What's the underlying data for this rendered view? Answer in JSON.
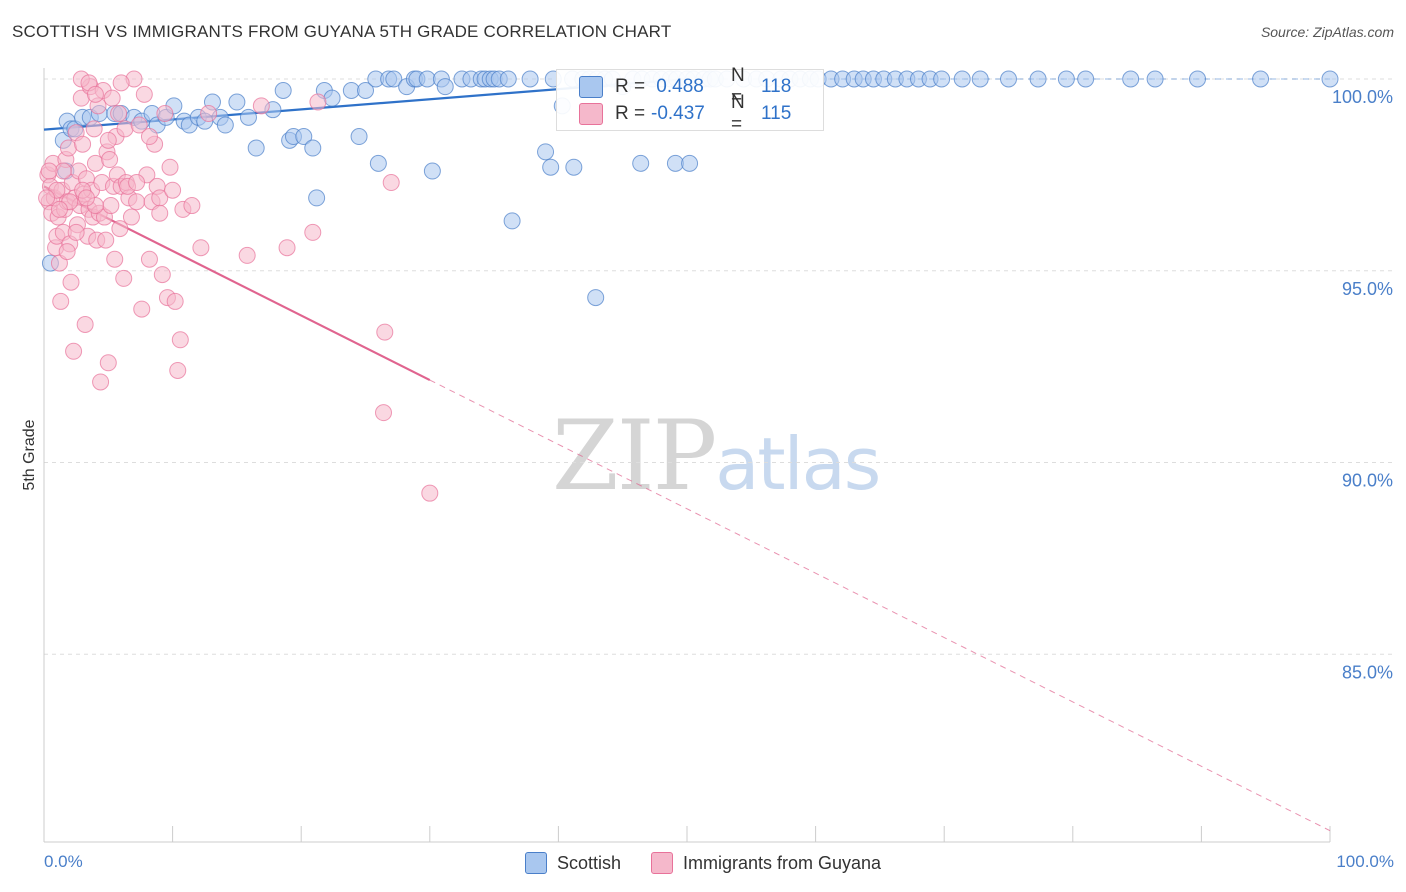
{
  "header": {
    "title": "SCOTTISH VS IMMIGRANTS FROM GUYANA 5TH GRADE CORRELATION CHART",
    "source": "Source: ZipAtlas.com"
  },
  "watermark": {
    "zip": "ZIP",
    "atlas": "atlas"
  },
  "colors": {
    "blue": "#4a7fc9",
    "blue_fill": "#a9c7ef",
    "blue_line": "#2f72c9",
    "pink": "#e8729a",
    "pink_fill": "#f5b8cb",
    "pink_line": "#e0648f",
    "grid": "#dddddd"
  },
  "stats": {
    "scottish": {
      "r_label": "R =",
      "r_value": " 0.488",
      "n_label": "N =",
      "n_value": "118"
    },
    "guyana": {
      "r_label": "R =",
      "r_value": "-0.437",
      "n_label": "N =",
      "n_value": "115"
    }
  },
  "legend": {
    "scottish": "Scottish",
    "guyana": "Immigrants from Guyana"
  },
  "chart_data": {
    "type": "scatter",
    "title": "SCOTTISH VS IMMIGRANTS FROM GUYANA 5TH GRADE CORRELATION CHART",
    "xlabel": "",
    "ylabel": "5th Grade",
    "xlim": [
      0,
      100
    ],
    "ylim": [
      80.5,
      100.5
    ],
    "x_tick_labels": [
      "0.0%",
      "100.0%"
    ],
    "y_ticks": [
      100,
      95,
      90,
      85
    ],
    "y_tick_labels": [
      "100.0%",
      "95.0%",
      "90.0%",
      "85.0%"
    ],
    "grid": true,
    "legend_position": "bottom-center",
    "series": [
      {
        "name": "Scottish",
        "r": 0.488,
        "n": 118,
        "trend": {
          "x": [
            0,
            50
          ],
          "y": [
            98.68,
            100.0
          ],
          "extended_x": [
            50,
            100
          ],
          "extended_y": [
            100.0,
            100.0
          ]
        },
        "points": [
          [
            0.5,
            95.2
          ],
          [
            1.5,
            98.4
          ],
          [
            1.7,
            97.6
          ],
          [
            1.8,
            98.9
          ],
          [
            2.1,
            98.7
          ],
          [
            2.4,
            98.7
          ],
          [
            3,
            99
          ],
          [
            3.6,
            99
          ],
          [
            4.3,
            99.1
          ],
          [
            5.5,
            99.1
          ],
          [
            6,
            99.1
          ],
          [
            7,
            99
          ],
          [
            7.6,
            98.9
          ],
          [
            8.4,
            99.1
          ],
          [
            8.8,
            98.8
          ],
          [
            9.5,
            99
          ],
          [
            10.1,
            99.3
          ],
          [
            10.9,
            98.9
          ],
          [
            11.3,
            98.8
          ],
          [
            12,
            99
          ],
          [
            12.5,
            98.9
          ],
          [
            13.1,
            99.4
          ],
          [
            13.7,
            99
          ],
          [
            14.1,
            98.8
          ],
          [
            15,
            99.4
          ],
          [
            15.9,
            99
          ],
          [
            16.5,
            98.2
          ],
          [
            17.8,
            99.2
          ],
          [
            18.6,
            99.7
          ],
          [
            19.1,
            98.4
          ],
          [
            19.4,
            98.5
          ],
          [
            20.2,
            98.5
          ],
          [
            20.9,
            98.2
          ],
          [
            21.2,
            96.9
          ],
          [
            21.8,
            99.7
          ],
          [
            22.4,
            99.5
          ],
          [
            23.9,
            99.7
          ],
          [
            24.5,
            98.5
          ],
          [
            25,
            99.7
          ],
          [
            25.8,
            100
          ],
          [
            26,
            97.8
          ],
          [
            26.8,
            100
          ],
          [
            27.2,
            100
          ],
          [
            28.2,
            99.8
          ],
          [
            28.8,
            100
          ],
          [
            29,
            100
          ],
          [
            29.8,
            100
          ],
          [
            30.2,
            97.6
          ],
          [
            30.9,
            100
          ],
          [
            31.2,
            99.8
          ],
          [
            32.5,
            100
          ],
          [
            33.2,
            100
          ],
          [
            34,
            100
          ],
          [
            34.3,
            100
          ],
          [
            34.7,
            100
          ],
          [
            35,
            100
          ],
          [
            35.4,
            100
          ],
          [
            36.1,
            100
          ],
          [
            37.8,
            100
          ],
          [
            39,
            98.1
          ],
          [
            39.4,
            97.7
          ],
          [
            39.6,
            100
          ],
          [
            40.3,
            99.3
          ],
          [
            41.1,
            100
          ],
          [
            41.9,
            100
          ],
          [
            42.4,
            100
          ],
          [
            43,
            100
          ],
          [
            43.6,
            100
          ],
          [
            44.2,
            100
          ],
          [
            45,
            99.8
          ],
          [
            45.8,
            100
          ],
          [
            46.5,
            100
          ],
          [
            47.3,
            100
          ],
          [
            48,
            100
          ],
          [
            48.7,
            100
          ],
          [
            49.2,
            100
          ],
          [
            50,
            100
          ],
          [
            50.5,
            100
          ],
          [
            51.3,
            100
          ],
          [
            51.8,
            100
          ],
          [
            52.2,
            100
          ],
          [
            53.1,
            100
          ],
          [
            54.4,
            100
          ],
          [
            55.4,
            100
          ],
          [
            56.2,
            100
          ],
          [
            57.3,
            100
          ],
          [
            58,
            100
          ],
          [
            58.8,
            100
          ],
          [
            59.6,
            100
          ],
          [
            60.2,
            100
          ],
          [
            61.2,
            100
          ],
          [
            62.1,
            100
          ],
          [
            63,
            100
          ],
          [
            63.7,
            100
          ],
          [
            64.5,
            100
          ],
          [
            65.3,
            100
          ],
          [
            66.2,
            100
          ],
          [
            67.1,
            100
          ],
          [
            68,
            100
          ],
          [
            68.9,
            100
          ],
          [
            69.8,
            100
          ],
          [
            71.4,
            100
          ],
          [
            72.8,
            100
          ],
          [
            75,
            100
          ],
          [
            77.3,
            100
          ],
          [
            79.5,
            100
          ],
          [
            81,
            100
          ],
          [
            84.5,
            100
          ],
          [
            86.4,
            100
          ],
          [
            89.7,
            100
          ],
          [
            94.6,
            100
          ],
          [
            100,
            100
          ],
          [
            36.4,
            96.3
          ],
          [
            49.1,
            97.8
          ],
          [
            50.2,
            97.8
          ],
          [
            46.4,
            97.8
          ],
          [
            41.2,
            97.7
          ],
          [
            42.9,
            94.3
          ]
        ]
      },
      {
        "name": "Immigrants from Guyana",
        "r": -0.437,
        "n": 115,
        "trend": {
          "x": [
            0,
            30
          ],
          "y": [
            97.2,
            92.15
          ],
          "extended_x": [
            30,
            100
          ],
          "extended_y": [
            92.15,
            80.4
          ]
        },
        "points": [
          [
            0.3,
            97.5
          ],
          [
            0.4,
            96.8
          ],
          [
            0.5,
            97.2
          ],
          [
            0.6,
            96.5
          ],
          [
            0.7,
            97.8
          ],
          [
            0.8,
            96.9
          ],
          [
            0.9,
            95.6
          ],
          [
            1,
            95.9
          ],
          [
            1.1,
            96.4
          ],
          [
            1.2,
            95.2
          ],
          [
            1.3,
            94.2
          ],
          [
            1.4,
            97.1
          ],
          [
            1.5,
            96
          ],
          [
            1.6,
            96.6
          ],
          [
            1.7,
            97.9
          ],
          [
            1.8,
            96.8
          ],
          [
            1.9,
            98.2
          ],
          [
            2,
            95.7
          ],
          [
            2.1,
            94.7
          ],
          [
            2.2,
            97.3
          ],
          [
            2.3,
            92.9
          ],
          [
            2.4,
            96.9
          ],
          [
            2.5,
            98.6
          ],
          [
            2.6,
            96.2
          ],
          [
            2.7,
            97.6
          ],
          [
            2.8,
            96.7
          ],
          [
            2.9,
            99.5
          ],
          [
            3,
            98.3
          ],
          [
            3.1,
            97
          ],
          [
            3.2,
            93.6
          ],
          [
            3.3,
            97.4
          ],
          [
            3.4,
            95.9
          ],
          [
            3.5,
            96.6
          ],
          [
            3.6,
            99.8
          ],
          [
            3.7,
            97.1
          ],
          [
            3.8,
            96.4
          ],
          [
            3.9,
            98.7
          ],
          [
            4,
            97.8
          ],
          [
            4.1,
            95.8
          ],
          [
            4.2,
            99.3
          ],
          [
            4.3,
            96.5
          ],
          [
            4.4,
            92.1
          ],
          [
            4.5,
            97.3
          ],
          [
            4.6,
            99.7
          ],
          [
            4.7,
            96.4
          ],
          [
            4.8,
            95.8
          ],
          [
            4.9,
            98.1
          ],
          [
            5,
            92.6
          ],
          [
            5.1,
            97.9
          ],
          [
            5.2,
            96.7
          ],
          [
            5.3,
            99.5
          ],
          [
            5.4,
            97.2
          ],
          [
            5.5,
            95.3
          ],
          [
            5.6,
            98.5
          ],
          [
            5.7,
            97.5
          ],
          [
            5.8,
            99.1
          ],
          [
            5.9,
            96.1
          ],
          [
            6,
            97.2
          ],
          [
            6.2,
            94.8
          ],
          [
            6.3,
            98.7
          ],
          [
            6.4,
            97.3
          ],
          [
            6.6,
            96.9
          ],
          [
            6.8,
            96.4
          ],
          [
            7,
            100
          ],
          [
            7.2,
            96.8
          ],
          [
            7.4,
            98.8
          ],
          [
            7.6,
            94
          ],
          [
            7.8,
            99.6
          ],
          [
            8,
            97.5
          ],
          [
            8.2,
            95.3
          ],
          [
            8.4,
            96.8
          ],
          [
            8.6,
            98.3
          ],
          [
            8.8,
            97.2
          ],
          [
            9,
            96.9
          ],
          [
            9.2,
            94.9
          ],
          [
            9.4,
            99.1
          ],
          [
            9.6,
            94.3
          ],
          [
            9.8,
            97.7
          ],
          [
            10,
            97.1
          ],
          [
            10.2,
            94.2
          ],
          [
            10.4,
            92.4
          ],
          [
            10.6,
            93.2
          ],
          [
            10.8,
            96.6
          ],
          [
            12.2,
            95.6
          ],
          [
            12.8,
            99.1
          ],
          [
            15.8,
            95.4
          ],
          [
            16.9,
            99.3
          ],
          [
            18.9,
            95.6
          ],
          [
            20.9,
            96
          ],
          [
            21.3,
            99.4
          ],
          [
            26.4,
            91.3
          ],
          [
            27,
            97.3
          ],
          [
            30,
            89.2
          ],
          [
            26.5,
            93.4
          ],
          [
            2.9,
            100
          ],
          [
            3.5,
            99.9
          ],
          [
            4,
            99.6
          ],
          [
            6,
            99.9
          ],
          [
            5,
            98.4
          ],
          [
            1.5,
            97.6
          ],
          [
            1,
            97.1
          ],
          [
            2,
            96.8
          ],
          [
            3,
            97.1
          ],
          [
            4,
            96.7
          ],
          [
            2.5,
            96
          ],
          [
            1.8,
            95.5
          ],
          [
            3.3,
            96.9
          ],
          [
            0.2,
            96.9
          ],
          [
            0.4,
            97.6
          ],
          [
            1.2,
            96.6
          ],
          [
            6.5,
            97.2
          ],
          [
            7.2,
            97.3
          ],
          [
            8.2,
            98.5
          ],
          [
            9,
            96.5
          ],
          [
            11.5,
            96.7
          ]
        ]
      }
    ]
  }
}
